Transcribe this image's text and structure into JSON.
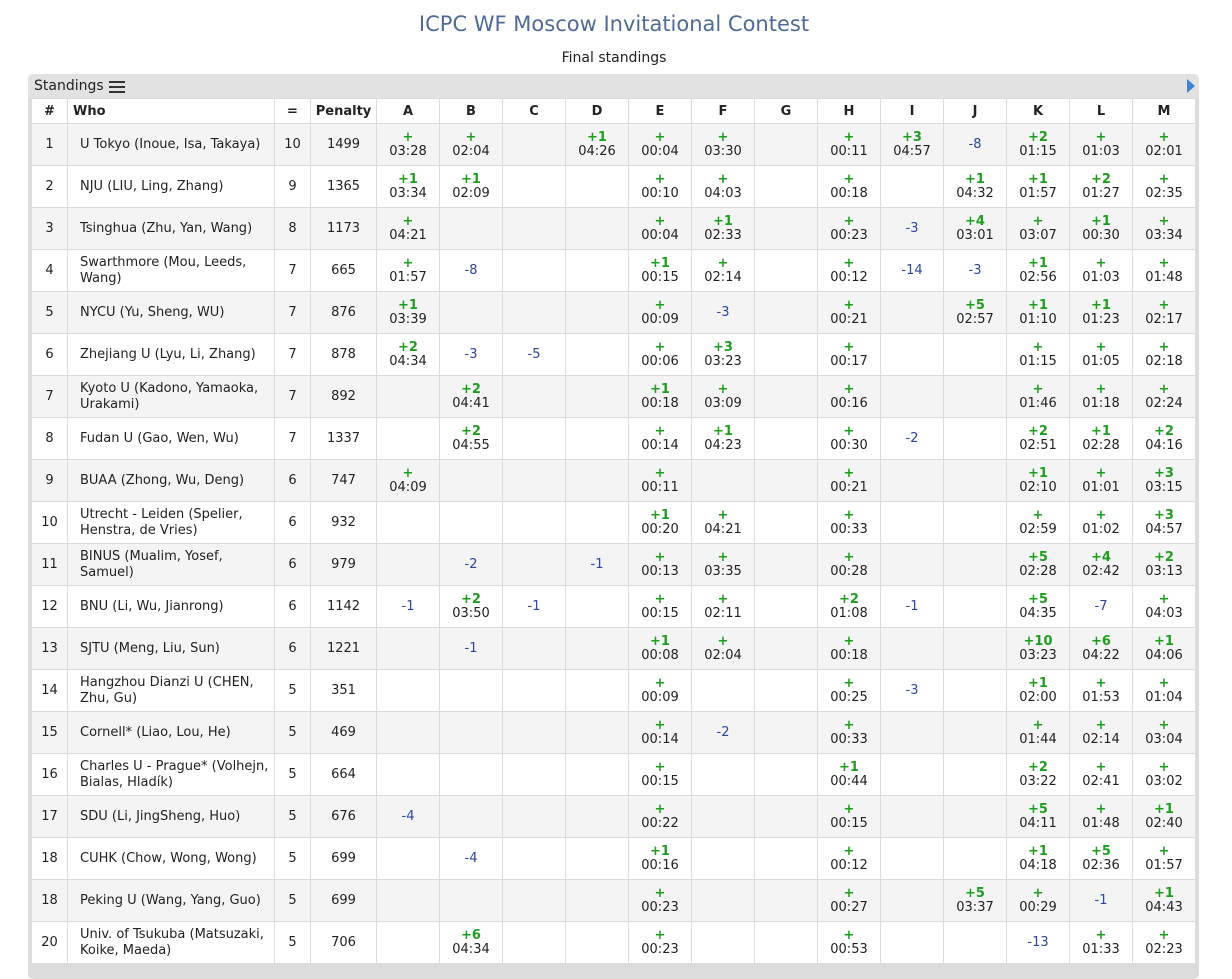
{
  "page": {
    "title": "ICPC WF Moscow Invitational Contest",
    "subtitle": "Final standings",
    "panel_title": "Standings",
    "icons": {
      "list": "list-icon",
      "expand": "arrow-right-icon"
    },
    "colors": {
      "accepted": "#1e9e1e",
      "rejected": "#2c45a0",
      "title": "#4f6a97",
      "expand": "#3b84d6"
    }
  },
  "columns": [
    "#",
    "Who",
    "=",
    "Penalty",
    "A",
    "B",
    "C",
    "D",
    "E",
    "F",
    "G",
    "H",
    "I",
    "J",
    "K",
    "L",
    "M"
  ],
  "rows": [
    {
      "rank": "1",
      "who": "U Tokyo (Inoue, Isa, Takaya)",
      "solved": "10",
      "penalty": "1499",
      "cells": [
        {
          "a": "+",
          "t": "03:28"
        },
        {
          "a": "+",
          "t": "02:04"
        },
        {},
        {
          "a": "+1",
          "t": "04:26"
        },
        {
          "a": "+",
          "t": "00:04"
        },
        {
          "a": "+",
          "t": "03:30"
        },
        {},
        {
          "a": "+",
          "t": "00:11"
        },
        {
          "a": "+3",
          "t": "04:57"
        },
        {
          "r": "-8"
        },
        {
          "a": "+2",
          "t": "01:15"
        },
        {
          "a": "+",
          "t": "01:03"
        },
        {
          "a": "+",
          "t": "02:01"
        }
      ]
    },
    {
      "rank": "2",
      "who": "NJU (LIU, Ling, Zhang)",
      "solved": "9",
      "penalty": "1365",
      "cells": [
        {
          "a": "+1",
          "t": "03:34"
        },
        {
          "a": "+1",
          "t": "02:09"
        },
        {},
        {},
        {
          "a": "+",
          "t": "00:10"
        },
        {
          "a": "+",
          "t": "04:03"
        },
        {},
        {
          "a": "+",
          "t": "00:18"
        },
        {},
        {
          "a": "+1",
          "t": "04:32"
        },
        {
          "a": "+1",
          "t": "01:57"
        },
        {
          "a": "+2",
          "t": "01:27"
        },
        {
          "a": "+",
          "t": "02:35"
        }
      ]
    },
    {
      "rank": "3",
      "who": "Tsinghua (Zhu, Yan, Wang)",
      "solved": "8",
      "penalty": "1173",
      "cells": [
        {
          "a": "+",
          "t": "04:21"
        },
        {},
        {},
        {},
        {
          "a": "+",
          "t": "00:04"
        },
        {
          "a": "+1",
          "t": "02:33"
        },
        {},
        {
          "a": "+",
          "t": "00:23"
        },
        {
          "r": "-3"
        },
        {
          "a": "+4",
          "t": "03:01"
        },
        {
          "a": "+",
          "t": "03:07"
        },
        {
          "a": "+1",
          "t": "00:30"
        },
        {
          "a": "+",
          "t": "03:34"
        }
      ]
    },
    {
      "rank": "4",
      "who": "Swarthmore (Mou, Leeds, Wang)",
      "solved": "7",
      "penalty": "665",
      "cells": [
        {
          "a": "+",
          "t": "01:57"
        },
        {
          "r": "-8"
        },
        {},
        {},
        {
          "a": "+1",
          "t": "00:15"
        },
        {
          "a": "+",
          "t": "02:14"
        },
        {},
        {
          "a": "+",
          "t": "00:12"
        },
        {
          "r": "-14"
        },
        {
          "r": "-3"
        },
        {
          "a": "+1",
          "t": "02:56"
        },
        {
          "a": "+",
          "t": "01:03"
        },
        {
          "a": "+",
          "t": "01:48"
        }
      ]
    },
    {
      "rank": "5",
      "who": "NYCU (Yu, Sheng, WU)",
      "solved": "7",
      "penalty": "876",
      "cells": [
        {
          "a": "+1",
          "t": "03:39"
        },
        {},
        {},
        {},
        {
          "a": "+",
          "t": "00:09"
        },
        {
          "r": "-3"
        },
        {},
        {
          "a": "+",
          "t": "00:21"
        },
        {},
        {
          "a": "+5",
          "t": "02:57"
        },
        {
          "a": "+1",
          "t": "01:10"
        },
        {
          "a": "+1",
          "t": "01:23"
        },
        {
          "a": "+",
          "t": "02:17"
        }
      ]
    },
    {
      "rank": "6",
      "who": "Zhejiang U (Lyu, Li, Zhang)",
      "solved": "7",
      "penalty": "878",
      "cells": [
        {
          "a": "+2",
          "t": "04:34"
        },
        {
          "r": "-3"
        },
        {
          "r": "-5"
        },
        {},
        {
          "a": "+",
          "t": "00:06"
        },
        {
          "a": "+3",
          "t": "03:23"
        },
        {},
        {
          "a": "+",
          "t": "00:17"
        },
        {},
        {},
        {
          "a": "+",
          "t": "01:15"
        },
        {
          "a": "+",
          "t": "01:05"
        },
        {
          "a": "+",
          "t": "02:18"
        }
      ]
    },
    {
      "rank": "7",
      "who": "Kyoto U (Kadono, Yamaoka, Urakami)",
      "solved": "7",
      "penalty": "892",
      "cells": [
        {},
        {
          "a": "+2",
          "t": "04:41"
        },
        {},
        {},
        {
          "a": "+1",
          "t": "00:18"
        },
        {
          "a": "+",
          "t": "03:09"
        },
        {},
        {
          "a": "+",
          "t": "00:16"
        },
        {},
        {},
        {
          "a": "+",
          "t": "01:46"
        },
        {
          "a": "+",
          "t": "01:18"
        },
        {
          "a": "+",
          "t": "02:24"
        }
      ]
    },
    {
      "rank": "8",
      "who": "Fudan U (Gao, Wen, Wu)",
      "solved": "7",
      "penalty": "1337",
      "cells": [
        {},
        {
          "a": "+2",
          "t": "04:55"
        },
        {},
        {},
        {
          "a": "+",
          "t": "00:14"
        },
        {
          "a": "+1",
          "t": "04:23"
        },
        {},
        {
          "a": "+",
          "t": "00:30"
        },
        {
          "r": "-2"
        },
        {},
        {
          "a": "+2",
          "t": "02:51"
        },
        {
          "a": "+1",
          "t": "02:28"
        },
        {
          "a": "+2",
          "t": "04:16"
        }
      ]
    },
    {
      "rank": "9",
      "who": "BUAA (Zhong, Wu, Deng)",
      "solved": "6",
      "penalty": "747",
      "cells": [
        {
          "a": "+",
          "t": "04:09"
        },
        {},
        {},
        {},
        {
          "a": "+",
          "t": "00:11"
        },
        {},
        {},
        {
          "a": "+",
          "t": "00:21"
        },
        {},
        {},
        {
          "a": "+1",
          "t": "02:10"
        },
        {
          "a": "+",
          "t": "01:01"
        },
        {
          "a": "+3",
          "t": "03:15"
        }
      ]
    },
    {
      "rank": "10",
      "who": "Utrecht - Leiden (Spelier, Henstra, de Vries)",
      "solved": "6",
      "penalty": "932",
      "cells": [
        {},
        {},
        {},
        {},
        {
          "a": "+1",
          "t": "00:20"
        },
        {
          "a": "+",
          "t": "04:21"
        },
        {},
        {
          "a": "+",
          "t": "00:33"
        },
        {},
        {},
        {
          "a": "+",
          "t": "02:59"
        },
        {
          "a": "+",
          "t": "01:02"
        },
        {
          "a": "+3",
          "t": "04:57"
        }
      ]
    },
    {
      "rank": "11",
      "who": "BINUS (Mualim, Yosef, Samuel)",
      "solved": "6",
      "penalty": "979",
      "cells": [
        {},
        {
          "r": "-2"
        },
        {},
        {
          "r": "-1"
        },
        {
          "a": "+",
          "t": "00:13"
        },
        {
          "a": "+",
          "t": "03:35"
        },
        {},
        {
          "a": "+",
          "t": "00:28"
        },
        {},
        {},
        {
          "a": "+5",
          "t": "02:28"
        },
        {
          "a": "+4",
          "t": "02:42"
        },
        {
          "a": "+2",
          "t": "03:13"
        }
      ]
    },
    {
      "rank": "12",
      "who": "BNU (Li, Wu, Jianrong)",
      "solved": "6",
      "penalty": "1142",
      "cells": [
        {
          "r": "-1"
        },
        {
          "a": "+2",
          "t": "03:50"
        },
        {
          "r": "-1"
        },
        {},
        {
          "a": "+",
          "t": "00:15"
        },
        {
          "a": "+",
          "t": "02:11"
        },
        {},
        {
          "a": "+2",
          "t": "01:08"
        },
        {
          "r": "-1"
        },
        {},
        {
          "a": "+5",
          "t": "04:35"
        },
        {
          "r": "-7"
        },
        {
          "a": "+",
          "t": "04:03"
        }
      ]
    },
    {
      "rank": "13",
      "who": "SJTU (Meng, Liu, Sun)",
      "solved": "6",
      "penalty": "1221",
      "cells": [
        {},
        {
          "r": "-1"
        },
        {},
        {},
        {
          "a": "+1",
          "t": "00:08"
        },
        {
          "a": "+",
          "t": "02:04"
        },
        {},
        {
          "a": "+",
          "t": "00:18"
        },
        {},
        {},
        {
          "a": "+10",
          "t": "03:23"
        },
        {
          "a": "+6",
          "t": "04:22"
        },
        {
          "a": "+1",
          "t": "04:06"
        }
      ]
    },
    {
      "rank": "14",
      "who": "Hangzhou Dianzi U (CHEN, Zhu, Gu)",
      "solved": "5",
      "penalty": "351",
      "cells": [
        {},
        {},
        {},
        {},
        {
          "a": "+",
          "t": "00:09"
        },
        {},
        {},
        {
          "a": "+",
          "t": "00:25"
        },
        {
          "r": "-3"
        },
        {},
        {
          "a": "+1",
          "t": "02:00"
        },
        {
          "a": "+",
          "t": "01:53"
        },
        {
          "a": "+",
          "t": "01:04"
        }
      ]
    },
    {
      "rank": "15",
      "who": "Cornell* (Liao, Lou, He)",
      "solved": "5",
      "penalty": "469",
      "cells": [
        {},
        {},
        {},
        {},
        {
          "a": "+",
          "t": "00:14"
        },
        {
          "r": "-2"
        },
        {},
        {
          "a": "+",
          "t": "00:33"
        },
        {},
        {},
        {
          "a": "+",
          "t": "01:44"
        },
        {
          "a": "+",
          "t": "02:14"
        },
        {
          "a": "+",
          "t": "03:04"
        }
      ]
    },
    {
      "rank": "16",
      "who": "Charles U - Prague* (Volhejn, Bialas, Hladík)",
      "solved": "5",
      "penalty": "664",
      "cells": [
        {},
        {},
        {},
        {},
        {
          "a": "+",
          "t": "00:15"
        },
        {},
        {},
        {
          "a": "+1",
          "t": "00:44"
        },
        {},
        {},
        {
          "a": "+2",
          "t": "03:22"
        },
        {
          "a": "+",
          "t": "02:41"
        },
        {
          "a": "+",
          "t": "03:02"
        }
      ]
    },
    {
      "rank": "17",
      "who": "SDU (Li, JingSheng, Huo)",
      "solved": "5",
      "penalty": "676",
      "cells": [
        {
          "r": "-4"
        },
        {},
        {},
        {},
        {
          "a": "+",
          "t": "00:22"
        },
        {},
        {},
        {
          "a": "+",
          "t": "00:15"
        },
        {},
        {},
        {
          "a": "+5",
          "t": "04:11"
        },
        {
          "a": "+",
          "t": "01:48"
        },
        {
          "a": "+1",
          "t": "02:40"
        }
      ]
    },
    {
      "rank": "18",
      "who": "CUHK (Chow, Wong, Wong)",
      "solved": "5",
      "penalty": "699",
      "cells": [
        {},
        {
          "r": "-4"
        },
        {},
        {},
        {
          "a": "+1",
          "t": "00:16"
        },
        {},
        {},
        {
          "a": "+",
          "t": "00:12"
        },
        {},
        {},
        {
          "a": "+1",
          "t": "04:18"
        },
        {
          "a": "+5",
          "t": "02:36"
        },
        {
          "a": "+",
          "t": "01:57"
        }
      ]
    },
    {
      "rank": "18",
      "who": "Peking U (Wang, Yang, Guo)",
      "solved": "5",
      "penalty": "699",
      "cells": [
        {},
        {},
        {},
        {},
        {
          "a": "+",
          "t": "00:23"
        },
        {},
        {},
        {
          "a": "+",
          "t": "00:27"
        },
        {},
        {
          "a": "+5",
          "t": "03:37"
        },
        {
          "a": "+",
          "t": "00:29"
        },
        {
          "r": "-1"
        },
        {
          "a": "+1",
          "t": "04:43"
        }
      ]
    },
    {
      "rank": "20",
      "who": "Univ. of Tsukuba (Matsuzaki, Koike, Maeda)",
      "solved": "5",
      "penalty": "706",
      "cells": [
        {},
        {
          "a": "+6",
          "t": "04:34"
        },
        {},
        {},
        {
          "a": "+",
          "t": "00:23"
        },
        {},
        {},
        {
          "a": "+",
          "t": "00:53"
        },
        {},
        {},
        {
          "r": "-13"
        },
        {
          "a": "+",
          "t": "01:33"
        },
        {
          "a": "+",
          "t": "02:23"
        }
      ]
    }
  ]
}
